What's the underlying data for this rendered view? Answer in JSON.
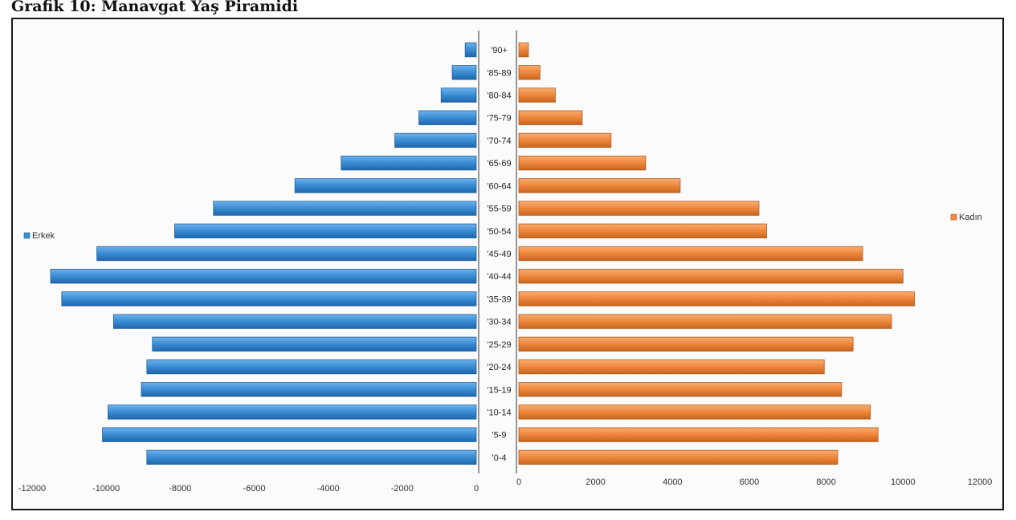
{
  "title": "Grafik 10: Manavgat Yaş Piramidi",
  "chart_data": {
    "type": "bar",
    "orientation": "horizontal",
    "categories": [
      "'0-4",
      "'5-9",
      "'10-14",
      "'15-19",
      "'20-24",
      "'25-29",
      "'30-34",
      "'35-39",
      "'40-44",
      "'45-49",
      "'50-54",
      "'55-59",
      "'60-64",
      "'65-69",
      "'70-74",
      "'75-79",
      "'80-84",
      "'85-89",
      "'90+"
    ],
    "series": [
      {
        "name": "Erkek",
        "color": "#3d8fd6",
        "values": [
          8900,
          10100,
          9950,
          9050,
          8900,
          8750,
          9800,
          11200,
          11500,
          10250,
          8150,
          7100,
          4900,
          3650,
          2200,
          1550,
          950,
          650,
          300
        ]
      },
      {
        "name": "Kadın",
        "color": "#f08a3e",
        "values": [
          8300,
          9350,
          9150,
          8400,
          7950,
          8700,
          9700,
          10300,
          10000,
          8950,
          6450,
          6250,
          4200,
          3300,
          2400,
          1650,
          950,
          550,
          250
        ]
      }
    ],
    "left_axis_ticks": [
      "-12000",
      "-10000",
      "-8000",
      "-6000",
      "-4000",
      "-2000",
      "0"
    ],
    "right_axis_ticks": [
      "0",
      "2000",
      "4000",
      "6000",
      "8000",
      "10000",
      "12000"
    ],
    "xlim": [
      0,
      12000
    ],
    "legend": [
      "Erkek",
      "Kadın"
    ],
    "grid": false
  }
}
